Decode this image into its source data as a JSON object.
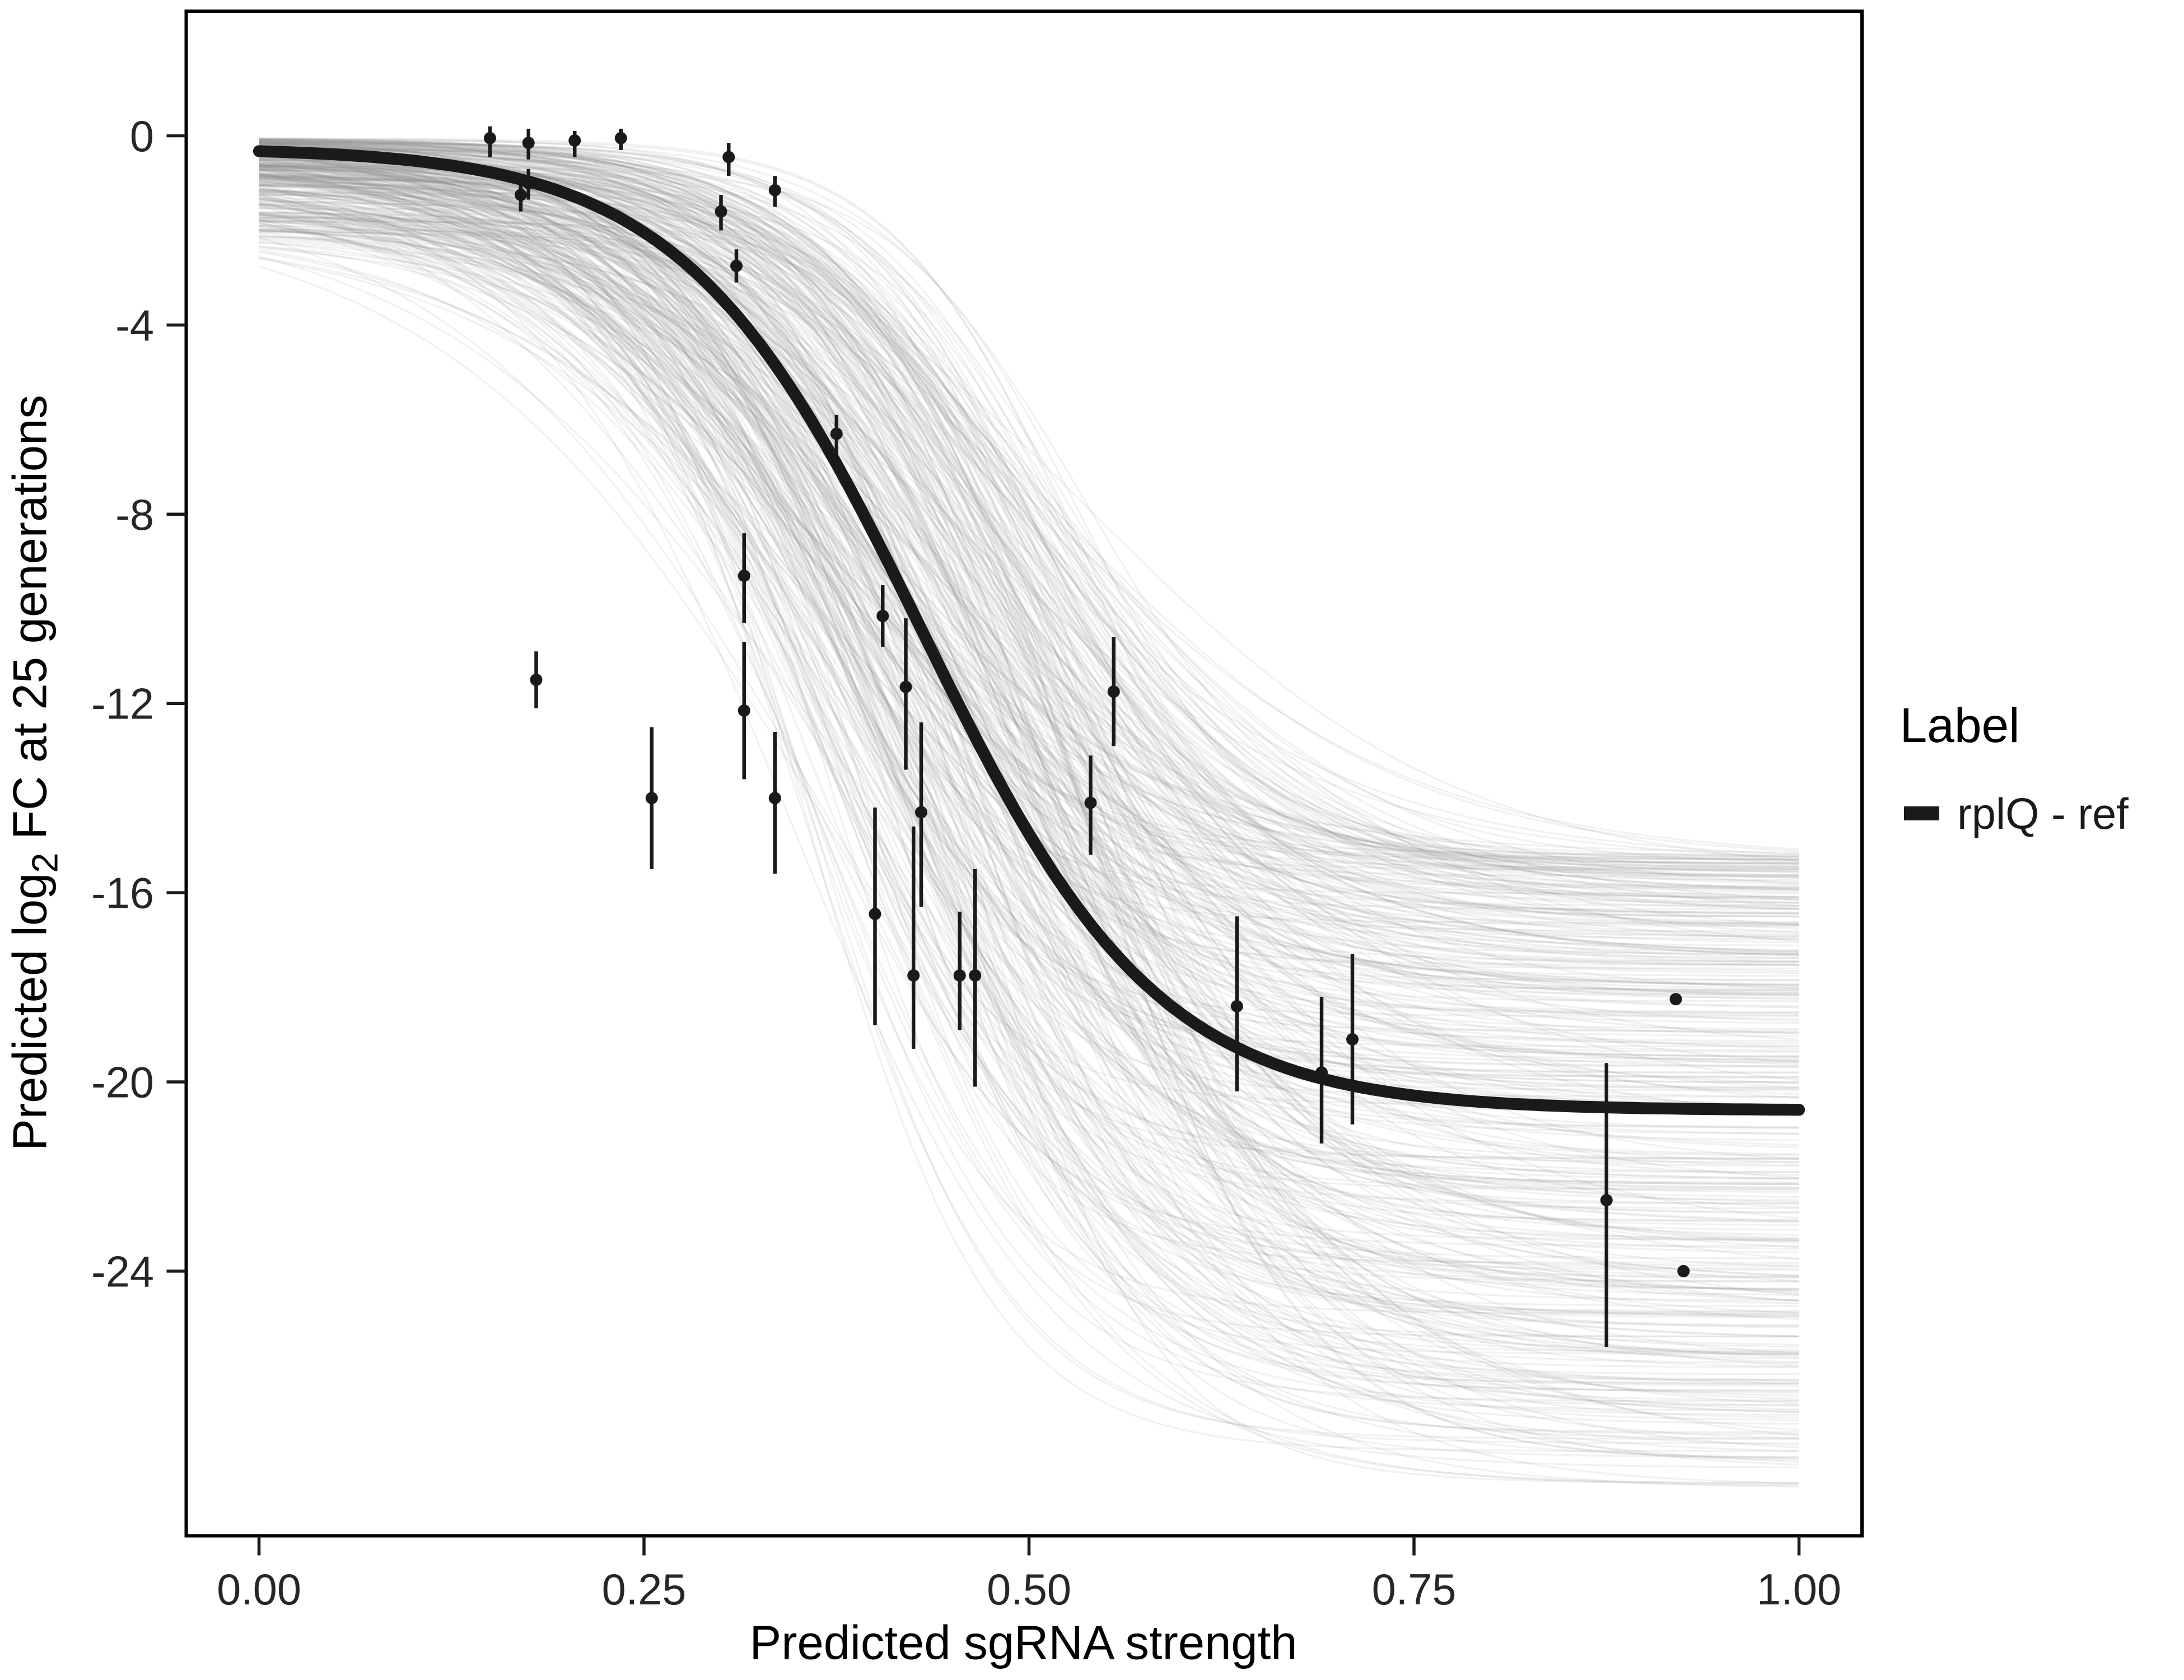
{
  "chart_data": {
    "type": "line",
    "title": "",
    "xlabel": "Predicted sgRNA strength",
    "ylabel": {
      "prefix": "Predicted  log",
      "sub": "2",
      "suffix": " FC at 25 generations"
    },
    "xlim": [
      0,
      1
    ],
    "ylim": [
      -29.6,
      2.6
    ],
    "grid": "off",
    "x_ticks": {
      "values": [
        0,
        0.25,
        0.5,
        0.75,
        1.0
      ],
      "labels": [
        "0.00",
        "0.25",
        "0.50",
        "0.75",
        "1.00"
      ]
    },
    "y_ticks": {
      "values": [
        0,
        -4,
        -8,
        -12,
        -16,
        -20,
        -24
      ],
      "labels": [
        "0",
        "-4",
        "-8",
        "-12",
        "-16",
        "-20",
        "-24"
      ]
    },
    "legend": {
      "title": "Label",
      "position": "right",
      "items": [
        {
          "label": "rplQ - ref",
          "color": "#1a1a1a",
          "marker": "thick-line"
        }
      ]
    },
    "fit_curve": {
      "name": "rplQ - ref",
      "model": "logistic",
      "top": -0.25,
      "bottom": -20.6,
      "midpoint": 0.43,
      "slope": 13,
      "color": "#1a1a1a",
      "width": 8.5
    },
    "ensemble": {
      "description": "posterior sample sigmoid curves",
      "count": 380,
      "color": "#8a8a8a",
      "opacity": 0.12,
      "width": 1.3,
      "seed": 42,
      "top_range": [
        -0.05,
        -2.1
      ],
      "bottom_range": [
        -15.2,
        -28.6
      ],
      "midpoint_range": [
        0.34,
        0.54
      ],
      "slope_range": [
        8,
        17
      ]
    },
    "points": [
      {
        "x": 0.15,
        "y": -0.05,
        "ylo": -0.45,
        "yhi": 0.2
      },
      {
        "x": 0.175,
        "y": -0.15,
        "ylo": -0.5,
        "yhi": 0.15
      },
      {
        "x": 0.175,
        "y": -1.0,
        "ylo": -1.35,
        "yhi": -0.7
      },
      {
        "x": 0.17,
        "y": -1.25,
        "ylo": -1.6,
        "yhi": -0.95
      },
      {
        "x": 0.205,
        "y": -0.1,
        "ylo": -0.45,
        "yhi": 0.1
      },
      {
        "x": 0.235,
        "y": -0.05,
        "ylo": -0.3,
        "yhi": 0.15
      },
      {
        "x": 0.305,
        "y": -0.45,
        "ylo": -0.85,
        "yhi": -0.15
      },
      {
        "x": 0.3,
        "y": -1.6,
        "ylo": -2.0,
        "yhi": -1.25
      },
      {
        "x": 0.31,
        "y": -2.75,
        "ylo": -3.1,
        "yhi": -2.4
      },
      {
        "x": 0.335,
        "y": -1.15,
        "ylo": -1.5,
        "yhi": -0.85
      },
      {
        "x": 0.375,
        "y": -6.3,
        "ylo": -6.8,
        "yhi": -5.9
      },
      {
        "x": 0.315,
        "y": -9.3,
        "ylo": -10.3,
        "yhi": -8.4
      },
      {
        "x": 0.405,
        "y": -10.15,
        "ylo": -10.8,
        "yhi": -9.5
      },
      {
        "x": 0.18,
        "y": -11.5,
        "ylo": -12.1,
        "yhi": -10.9
      },
      {
        "x": 0.315,
        "y": -12.15,
        "ylo": -13.6,
        "yhi": -10.7
      },
      {
        "x": 0.42,
        "y": -11.65,
        "ylo": -13.4,
        "yhi": -10.2
      },
      {
        "x": 0.255,
        "y": -14.0,
        "ylo": -15.5,
        "yhi": -12.5
      },
      {
        "x": 0.335,
        "y": -14.0,
        "ylo": -15.6,
        "yhi": -12.6
      },
      {
        "x": 0.43,
        "y": -14.3,
        "ylo": -16.3,
        "yhi": -12.4
      },
      {
        "x": 0.555,
        "y": -11.75,
        "ylo": -12.9,
        "yhi": -10.6
      },
      {
        "x": 0.54,
        "y": -14.1,
        "ylo": -15.2,
        "yhi": -13.1
      },
      {
        "x": 0.4,
        "y": -16.45,
        "ylo": -18.8,
        "yhi": -14.2
      },
      {
        "x": 0.425,
        "y": -17.75,
        "ylo": -19.3,
        "yhi": -14.6
      },
      {
        "x": 0.455,
        "y": -17.75,
        "ylo": -18.9,
        "yhi": -16.4
      },
      {
        "x": 0.465,
        "y": -17.75,
        "ylo": -20.1,
        "yhi": -15.5
      },
      {
        "x": 0.635,
        "y": -18.4,
        "ylo": -20.2,
        "yhi": -16.5
      },
      {
        "x": 0.69,
        "y": -19.8,
        "ylo": -21.3,
        "yhi": -18.2
      },
      {
        "x": 0.71,
        "y": -19.1,
        "ylo": -20.9,
        "yhi": -17.3
      },
      {
        "x": 0.875,
        "y": -22.5,
        "ylo": -25.6,
        "yhi": -19.6
      },
      {
        "x": 0.92,
        "y": -18.25,
        "ylo": -18.25,
        "yhi": -18.25
      },
      {
        "x": 0.925,
        "y": -24.0,
        "ylo": -24.0,
        "yhi": -24.0
      }
    ]
  }
}
